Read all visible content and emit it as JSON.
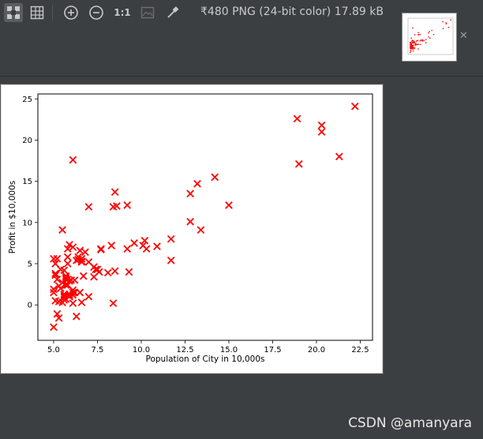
{
  "toolbar": {
    "info": "₹480 PNG (24-bit color) 17.89 kB",
    "zoom_actual": "1:1",
    "icons": [
      "fit-icon",
      "grid-icon",
      "zoom-in-icon",
      "zoom-out-icon",
      "actual-size-icon",
      "background-icon",
      "color-picker-icon"
    ]
  },
  "watermark": "CSDN @amanyara",
  "chart_data": {
    "type": "scatter",
    "xlabel": "Population of City in 10,000s",
    "ylabel": "Profit in $10,000s",
    "xlim": [
      4.1,
      23.2
    ],
    "ylim": [
      -4.3,
      25.6
    ],
    "xticks": [
      5.0,
      7.5,
      10.0,
      12.5,
      15.0,
      17.5,
      20.0,
      22.5
    ],
    "xtick_labels": [
      "5.0",
      "7.5",
      "10.0",
      "12.5",
      "15.0",
      "17.5",
      "20.0",
      "22.5"
    ],
    "yticks": [
      0,
      5,
      10,
      15,
      20,
      25
    ],
    "ytick_labels": [
      "0",
      "5",
      "10",
      "15",
      "20",
      "25"
    ],
    "marker": "x",
    "color": "#ff0000",
    "points": [
      [
        6.1,
        17.6
      ],
      [
        5.5,
        9.1
      ],
      [
        8.5,
        13.7
      ],
      [
        7.0,
        11.9
      ],
      [
        5.8,
        6.8
      ],
      [
        8.4,
        11.9
      ],
      [
        7.5,
        4.3
      ],
      [
        8.6,
        12.0
      ],
      [
        6.5,
        6.6
      ],
      [
        5.1,
        3.8
      ],
      [
        5.7,
        3.3
      ],
      [
        14.2,
        15.5
      ],
      [
        5.7,
        3.1
      ],
      [
        5.1,
        3.6
      ],
      [
        5.4,
        4.3
      ],
      [
        6.4,
        5.8
      ],
      [
        5.1,
        0.5
      ],
      [
        5.7,
        3.5
      ],
      [
        10.3,
        6.8
      ],
      [
        5.8,
        5.0
      ],
      [
        5.0,
        5.6
      ],
      [
        6.3,
        5.4
      ],
      [
        5.4,
        2.0
      ],
      [
        9.2,
        12.1
      ],
      [
        7.3,
        3.4
      ],
      [
        8.1,
        3.9
      ],
      [
        7.6,
        4.0
      ],
      [
        7.3,
        4.6
      ],
      [
        5.6,
        0.9
      ],
      [
        5.3,
        0.4
      ],
      [
        6.6,
        5.3
      ],
      [
        7.0,
        5.2
      ],
      [
        6.6,
        5.2
      ],
      [
        12.8,
        13.5
      ],
      [
        11.7,
        5.4
      ],
      [
        6.1,
        0.2
      ],
      [
        6.7,
        3.5
      ],
      [
        5.7,
        2.4
      ],
      [
        5.9,
        1.1
      ],
      [
        6.1,
        1.2
      ],
      [
        5.2,
        -1.1
      ],
      [
        11.7,
        8.0
      ],
      [
        5.6,
        4.2
      ],
      [
        5.0,
        1.9
      ],
      [
        5.8,
        2.4
      ],
      [
        5.2,
        3.1
      ],
      [
        5.9,
        1.0
      ],
      [
        7.0,
        1.0
      ],
      [
        6.2,
        1.5
      ],
      [
        5.5,
        2.7
      ],
      [
        7.4,
        4.3
      ],
      [
        5.9,
        7.3
      ],
      [
        5.3,
        2.3
      ],
      [
        12.8,
        10.1
      ],
      [
        13.4,
        9.1
      ],
      [
        5.0,
        -2.7
      ],
      [
        5.5,
        0.3
      ],
      [
        5.6,
        0.6
      ],
      [
        6.1,
        1.8
      ],
      [
        7.7,
        6.8
      ],
      [
        6.4,
        5.5
      ],
      [
        6.8,
        6.4
      ],
      [
        6.6,
        5.6
      ],
      [
        7.7,
        6.7
      ],
      [
        5.1,
        5.0
      ],
      [
        5.2,
        5.6
      ],
      [
        5.6,
        1.3
      ],
      [
        6.5,
        1.5
      ],
      [
        5.3,
        -1.6
      ],
      [
        5.0,
        1.5
      ],
      [
        13.2,
        14.7
      ],
      [
        9.6,
        7.5
      ],
      [
        9.2,
        6.8
      ],
      [
        9.3,
        4.0
      ],
      [
        10.1,
        7.2
      ],
      [
        15.0,
        12.1
      ],
      [
        6.6,
        0.3
      ],
      [
        10.2,
        7.8
      ],
      [
        8.4,
        0.2
      ],
      [
        6.1,
        7.0
      ],
      [
        6.2,
        3.0
      ],
      [
        6.0,
        3.0
      ],
      [
        8.3,
        7.2
      ],
      [
        8.5,
        4.1
      ],
      [
        6.3,
        -1.4
      ],
      [
        5.9,
        1.3
      ],
      [
        5.8,
        3.1
      ],
      [
        5.8,
        5.8
      ],
      [
        5.6,
        1.1
      ],
      [
        10.9,
        7.1
      ],
      [
        20.3,
        21.8
      ],
      [
        19.0,
        17.1
      ],
      [
        18.9,
        22.6
      ],
      [
        20.3,
        21.0
      ],
      [
        21.3,
        18.0
      ],
      [
        22.2,
        24.1
      ],
      [
        5.7,
        0.7
      ],
      [
        6.1,
        1.5
      ],
      [
        5.9,
        2.9
      ]
    ]
  }
}
